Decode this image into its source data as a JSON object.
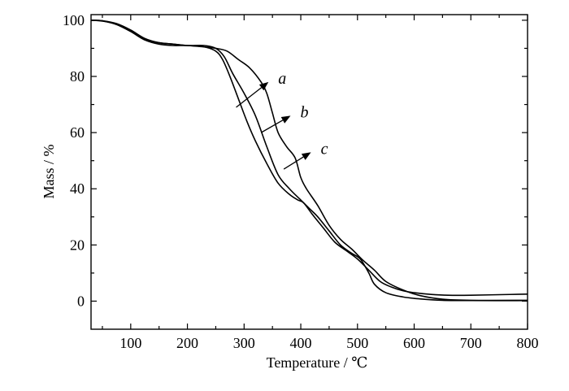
{
  "chart_data": {
    "type": "line",
    "title": "",
    "xlabel": "Temperature / ℃",
    "ylabel": "Mass / %",
    "xlim": [
      30,
      800
    ],
    "ylim": [
      -10,
      102
    ],
    "xticks": [
      100,
      200,
      300,
      400,
      500,
      600,
      700,
      800
    ],
    "yticks": [
      0,
      20,
      40,
      60,
      80,
      100
    ],
    "grid": false,
    "series": [
      {
        "name": "a",
        "x": [
          30,
          50,
          75,
          100,
          125,
          150,
          175,
          200,
          230,
          250,
          262,
          275,
          290,
          305,
          320,
          340,
          360,
          380,
          395,
          405,
          420,
          440,
          460,
          480,
          500,
          520,
          540,
          560,
          580,
          600,
          630,
          660,
          700,
          750,
          800
        ],
        "y": [
          100,
          99.8,
          98.5,
          96,
          93,
          91.5,
          91,
          91,
          90.5,
          89,
          86,
          80,
          72,
          64,
          57,
          49,
          42,
          38,
          36,
          35,
          31,
          26,
          21,
          18,
          15,
          11,
          7,
          5,
          3.7,
          3,
          2.4,
          2.1,
          2.1,
          2.3,
          2.5
        ]
      },
      {
        "name": "b",
        "x": [
          30,
          50,
          75,
          100,
          125,
          150,
          175,
          200,
          230,
          250,
          265,
          280,
          300,
          320,
          340,
          360,
          380,
          400,
          415,
          430,
          450,
          470,
          490,
          505,
          520,
          530,
          550,
          580,
          610,
          650,
          700,
          800
        ],
        "y": [
          100,
          99.8,
          98.8,
          96.5,
          93.5,
          92,
          91.5,
          91,
          91,
          90,
          87,
          81,
          74,
          66,
          55,
          45,
          40,
          36,
          33,
          30,
          25,
          20,
          17,
          15,
          10,
          6,
          3,
          1.5,
          0.8,
          0.3,
          0.2,
          0.2
        ]
      },
      {
        "name": "c",
        "x": [
          30,
          50,
          75,
          100,
          125,
          150,
          175,
          200,
          230,
          250,
          270,
          290,
          310,
          330,
          340,
          350,
          360,
          375,
          390,
          400,
          410,
          430,
          450,
          470,
          490,
          510,
          530,
          550,
          580,
          610,
          650,
          700,
          800
        ],
        "y": [
          100,
          99.7,
          98.5,
          96,
          93,
          92,
          91.5,
          91,
          90.5,
          90,
          89,
          86,
          83,
          78,
          74,
          67,
          60,
          55,
          51,
          44,
          40,
          34,
          27,
          22,
          18.5,
          14.5,
          11,
          7,
          4,
          2,
          0.7,
          0.3,
          0.3
        ]
      }
    ],
    "annotations": [
      {
        "label": "a",
        "from": [
          286,
          69
        ],
        "to": [
          343,
          78
        ]
      },
      {
        "label": "b",
        "from": [
          330,
          60
        ],
        "to": [
          382,
          66
        ]
      },
      {
        "label": "c",
        "from": [
          370,
          47
        ],
        "to": [
          418,
          53
        ]
      }
    ]
  }
}
